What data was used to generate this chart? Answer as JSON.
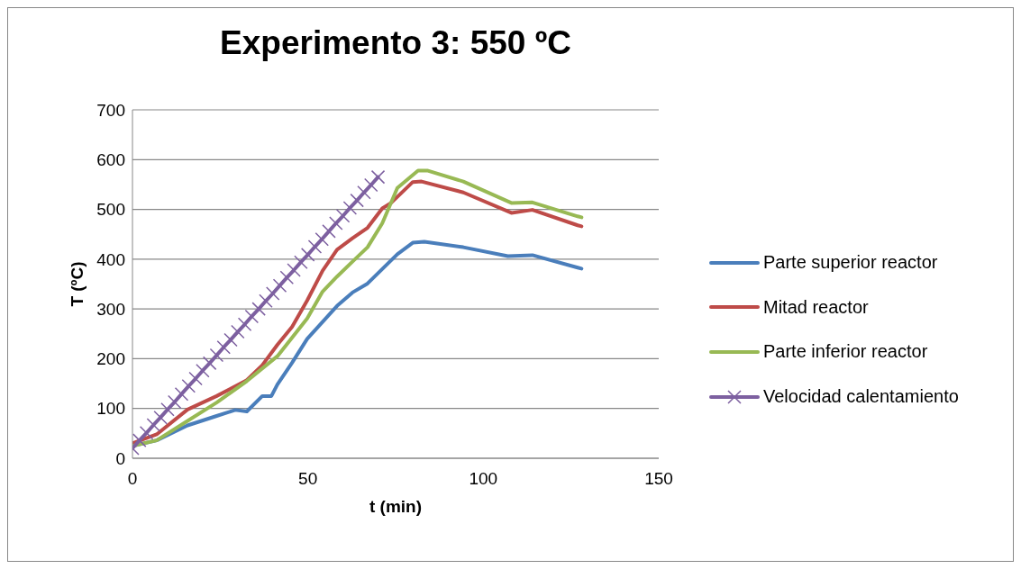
{
  "chart_data": {
    "type": "line",
    "title": "Experimento 3: 550 ºC",
    "xlabel": "t (min)",
    "ylabel": "T (ºC)",
    "xlim": [
      0,
      150
    ],
    "xticks": [
      0,
      50,
      100,
      150
    ],
    "ylim": [
      0,
      700
    ],
    "yticks": [
      0,
      100,
      200,
      300,
      400,
      500,
      600,
      700
    ],
    "grid": "y",
    "legend": "right",
    "line_style": "solid",
    "series": [
      {
        "name": "Parte superior reactor",
        "color": "#4a7ebb",
        "marker": "none",
        "x": [
          0,
          6.9,
          15.7,
          24,
          29.3,
          32.6,
          37,
          39.6,
          41.3,
          45.5,
          49.8,
          58.3,
          62.7,
          67,
          75.5,
          79.9,
          83.2,
          94.3,
          107,
          114,
          126.9,
          128
        ],
        "values": [
          25,
          36,
          66,
          85,
          97,
          94,
          125,
          125,
          148,
          192,
          240,
          306,
          333,
          351,
          410,
          433,
          435,
          424,
          406,
          408,
          383,
          381
        ]
      },
      {
        "name": "Mitad reactor",
        "color": "#be4b48",
        "marker": "none",
        "x": [
          0,
          6.9,
          15.7,
          24,
          32.6,
          37,
          41.3,
          45.5,
          49.8,
          54.2,
          58.3,
          62.7,
          67,
          71.2,
          73.7,
          79.9,
          82.4,
          94.3,
          108,
          114,
          126.9,
          128
        ],
        "values": [
          30,
          48,
          98,
          125,
          157,
          187,
          228,
          264,
          317,
          377,
          419,
          442,
          463,
          502,
          513,
          555,
          556,
          534,
          493,
          499,
          468,
          466
        ]
      },
      {
        "name": "Parte inferior reactor",
        "color": "#98b954",
        "marker": "none",
        "x": [
          0,
          6.9,
          15.7,
          24,
          32.6,
          41.3,
          49.8,
          54.2,
          58.3,
          62.7,
          67,
          71.2,
          75.5,
          81.4,
          84,
          94.3,
          108,
          114,
          126.9,
          128
        ],
        "values": [
          25,
          36,
          75,
          112,
          155,
          205,
          281,
          335,
          365,
          395,
          424,
          472,
          543,
          578,
          578,
          556,
          513,
          514,
          486,
          484
        ]
      },
      {
        "name": "Velocidad calentamiento",
        "color": "#7d60a0",
        "marker": "cross",
        "x": [
          0,
          2,
          4,
          6,
          8,
          10,
          12,
          14,
          16,
          18,
          20,
          22,
          24,
          26,
          28,
          30,
          32,
          34,
          36,
          38,
          40,
          42,
          44,
          46,
          48,
          50,
          52,
          54,
          56,
          58,
          60,
          62,
          64,
          66,
          68,
          70
        ],
        "values": [
          20,
          36,
          51,
          67,
          82,
          98,
          113,
          129,
          145,
          160,
          176,
          191,
          207,
          223,
          238,
          254,
          269,
          285,
          300,
          316,
          331,
          347,
          363,
          378,
          394,
          409,
          425,
          440,
          456,
          472,
          487,
          503,
          518,
          534,
          549,
          565
        ]
      }
    ]
  }
}
